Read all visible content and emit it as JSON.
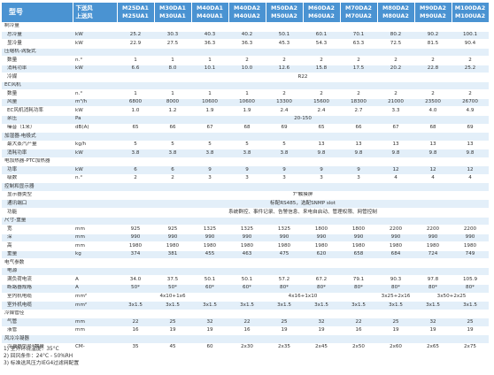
{
  "header": {
    "model": "型号",
    "flow": [
      "下送风",
      "上送风"
    ],
    "models": [
      [
        "M25DA1",
        "M25UA1"
      ],
      [
        "M30DA1",
        "M30UA1"
      ],
      [
        "M40DA1",
        "M40UA1"
      ],
      [
        "M40DA2",
        "M40UA2"
      ],
      [
        "M50DA2",
        "M50UA2"
      ],
      [
        "M60DA2",
        "M60UA2"
      ],
      [
        "M70DA2",
        "M70UA2"
      ],
      [
        "M80DA2",
        "M80UA2"
      ],
      [
        "M90DA2",
        "M90UA2"
      ],
      [
        "M100DA2",
        "M100UA2"
      ]
    ]
  },
  "rows": [
    {
      "label": "制冷量",
      "unit": "",
      "cells": []
    },
    {
      "label": "总冷量",
      "unit": "kW",
      "cells": [
        "25.2",
        "30.3",
        "40.3",
        "40.2",
        "50.1",
        "60.1",
        "70.1",
        "80.2",
        "90.2",
        "100.1"
      ]
    },
    {
      "label": "显冷量",
      "unit": "kW",
      "cells": [
        "22.9",
        "27.5",
        "36.3",
        "36.3",
        "45.3",
        "54.3",
        "63.3",
        "72.5",
        "81.5",
        "90.4"
      ]
    },
    {
      "label": "压缩机-涡旋式",
      "unit": "",
      "cells": []
    },
    {
      "label": "数量",
      "unit": "n.°",
      "cells": [
        "1",
        "1",
        "1",
        "2",
        "2",
        "2",
        "2",
        "2",
        "2",
        "2"
      ]
    },
    {
      "label": "消耗功率",
      "unit": "kW",
      "cells": [
        "6.6",
        "8.0",
        "10.1",
        "10.0",
        "12.6",
        "15.8",
        "17.5",
        "20.2",
        "22.8",
        "25.2"
      ]
    },
    {
      "label": "冷媒",
      "unit": "",
      "cells": [
        {
          "span": 10,
          "v": "R22"
        }
      ]
    },
    {
      "label": "EC风机",
      "unit": "",
      "cells": []
    },
    {
      "label": "数量",
      "unit": "n.°",
      "cells": [
        "1",
        "1",
        "1",
        "1",
        "2",
        "2",
        "2",
        "2",
        "2",
        "2"
      ]
    },
    {
      "label": "风量",
      "unit": "m³/h",
      "cells": [
        "6800",
        "8000",
        "10600",
        "10600",
        "13300",
        "15600",
        "18300",
        "21000",
        "23500",
        "26700"
      ]
    },
    {
      "label": "EC风机消耗功率",
      "unit": "kW",
      "cells": [
        "1.0",
        "1.2",
        "1.9",
        "1.9",
        "2.4",
        "2.4",
        "2.7",
        "3.3",
        "4.0",
        "4.9"
      ]
    },
    {
      "label": "余压",
      "unit": "Pa",
      "cells": [
        {
          "span": 10,
          "v": "20-150"
        }
      ]
    },
    {
      "label": "噪音（1米）",
      "unit": "dB(A)",
      "cells": [
        "65",
        "66",
        "67",
        "68",
        "69",
        "65",
        "66",
        "67",
        "68",
        "69"
      ]
    },
    {
      "label": "加湿器-电极式",
      "unit": "",
      "cells": []
    },
    {
      "label": "最大蒸汽产量",
      "unit": "kg/h",
      "cells": [
        "5",
        "5",
        "5",
        "5",
        "5",
        "13",
        "13",
        "13",
        "13",
        "13"
      ]
    },
    {
      "label": "消耗功率",
      "unit": "kW",
      "cells": [
        "3.8",
        "3.8",
        "3.8",
        "3.8",
        "3.8",
        "9.8",
        "9.8",
        "9.8",
        "9.8",
        "9.8"
      ]
    },
    {
      "label": "电加热器-PTC加热器",
      "unit": "",
      "cells": []
    },
    {
      "label": "功率",
      "unit": "kW",
      "cells": [
        "6",
        "6",
        "9",
        "9",
        "9",
        "9",
        "9",
        "12",
        "12",
        "12"
      ]
    },
    {
      "label": "级数",
      "unit": "n.°",
      "cells": [
        "2",
        "2",
        "3",
        "3",
        "3",
        "3",
        "3",
        "4",
        "4",
        "4"
      ]
    },
    {
      "label": "控制和显示器",
      "unit": "",
      "cells": []
    },
    {
      "label": "显示器类型",
      "unit": "",
      "cells": [
        {
          "span": 10,
          "v": "7\"触摸屏"
        }
      ]
    },
    {
      "label": "通讯端口",
      "unit": "",
      "cells": [
        {
          "span": 10,
          "v": "标配RS485，选配SNMP slot"
        }
      ]
    },
    {
      "label": "功能",
      "unit": "",
      "cells": [
        {
          "span": 10,
          "v": "系统群控、事件记录、告警信息、来电自启动、管理权限、网管控制"
        }
      ]
    },
    {
      "label": "尺寸-重量",
      "unit": "",
      "cells": []
    },
    {
      "label": "宽",
      "unit": "mm",
      "cells": [
        "925",
        "925",
        "1325",
        "1325",
        "1325",
        "1800",
        "1800",
        "2200",
        "2200",
        "2200"
      ]
    },
    {
      "label": "深",
      "unit": "mm",
      "cells": [
        "990",
        "990",
        "990",
        "990",
        "990",
        "990",
        "990",
        "990",
        "990",
        "990"
      ]
    },
    {
      "label": "高",
      "unit": "mm",
      "cells": [
        "1980",
        "1980",
        "1980",
        "1980",
        "1980",
        "1980",
        "1980",
        "1980",
        "1980",
        "1980"
      ]
    },
    {
      "label": "重量",
      "unit": "kg",
      "cells": [
        "374",
        "381",
        "455",
        "463",
        "475",
        "620",
        "658",
        "684",
        "724",
        "749"
      ]
    },
    {
      "label": "电气参数",
      "unit": "",
      "cells": []
    },
    {
      "label": "电源",
      "unit": "",
      "cells": [
        {
          "span": 10,
          "v": ""
        }
      ]
    },
    {
      "label": "满负荷电流",
      "unit": "A",
      "cells": [
        "34.0",
        "37.5",
        "50.1",
        "50.1",
        "57.2",
        "67.2",
        "79.1",
        "90.3",
        "97.8",
        "105.9"
      ]
    },
    {
      "label": "断路器规格",
      "unit": "A",
      "cells": [
        "50*",
        "50*",
        "60*",
        "60*",
        "80*",
        "80*",
        "80*",
        "80*",
        "80*",
        "80*"
      ]
    },
    {
      "label": "室内机电缆",
      "unit": "mm²",
      "cells": [
        {
          "span": 3,
          "v": "4x10+1x6"
        },
        {
          "span": 4,
          "v": "4x16+1x10"
        },
        {
          "span": 1,
          "v": "3x25+2x16"
        },
        {
          "span": 2,
          "v": "3x50+2x25"
        }
      ]
    },
    {
      "label": "室外机电缆",
      "unit": "mm²",
      "cells": [
        "3x1.5",
        "3x1.5",
        "3x1.5",
        "3x1.5",
        "3x1.5",
        "3x1.5",
        "3x1.5",
        "3x1.5",
        "3x1.5",
        "3x1.5"
      ]
    },
    {
      "label": "冷媒管径",
      "unit": "",
      "cells": []
    },
    {
      "label": "气管",
      "unit": "mm",
      "cells": [
        "22",
        "25",
        "32",
        "22",
        "25",
        "32",
        "22",
        "25",
        "32",
        "25"
      ]
    },
    {
      "label": "液管",
      "unit": "mm",
      "cells": [
        "16",
        "19",
        "19",
        "16",
        "19",
        "19",
        "16",
        "19",
        "19",
        "19"
      ]
    },
    {
      "label": "风冷冷凝器",
      "unit": "",
      "cells": []
    },
    {
      "label": "冷凝器型号*数量",
      "unit": "CM-",
      "cells": [
        "35",
        "45",
        "60",
        "2x30",
        "2x35",
        "2x45",
        "2x50",
        "2x60",
        "2x65",
        "2x75"
      ]
    }
  ],
  "notes": [
    "1) 室外环境温度：35°C",
    "2) 回风条件：24°C - 50%RH",
    "3) 标准送风压力IEG4过滤网配置"
  ]
}
